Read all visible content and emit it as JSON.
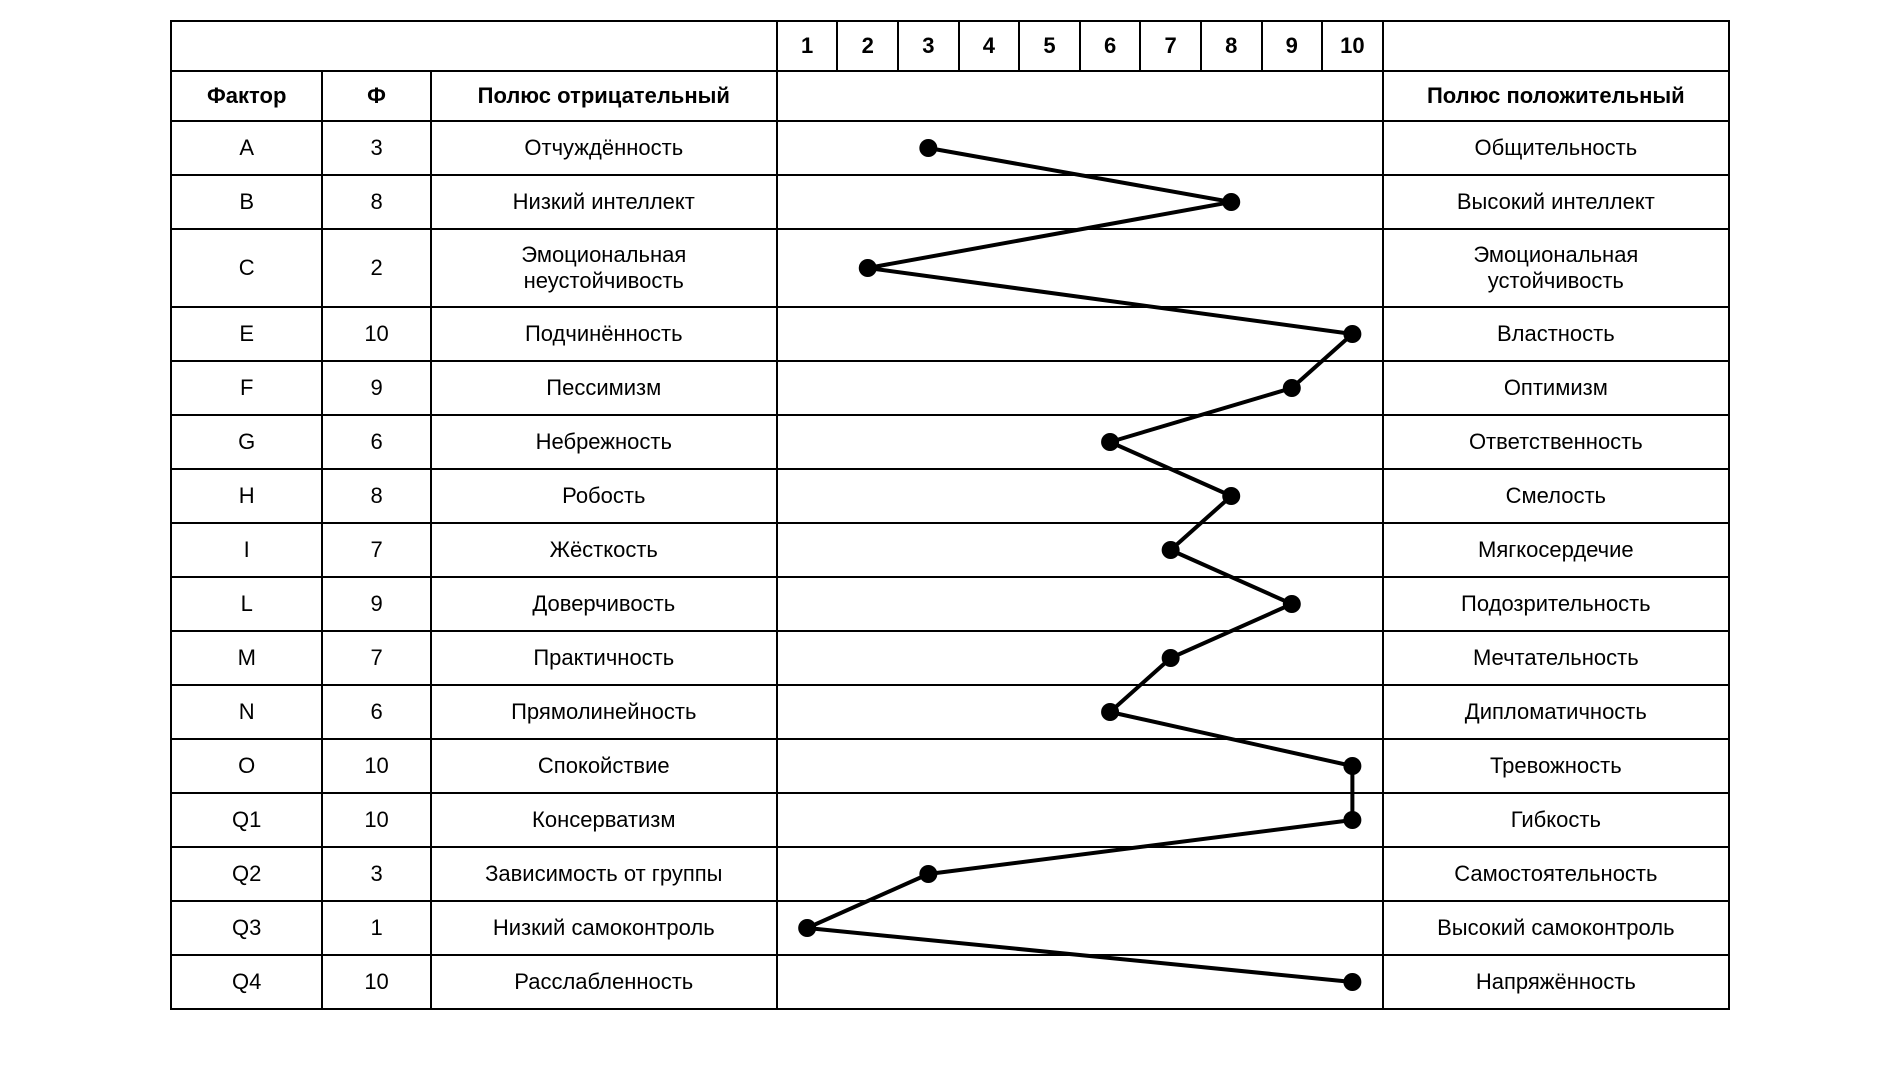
{
  "headers": {
    "factor": "Фактор",
    "phi": "Ф",
    "neg": "Полюс отрицательный",
    "pos": "Полюс положительный",
    "scale": [
      "1",
      "2",
      "3",
      "4",
      "5",
      "6",
      "7",
      "8",
      "9",
      "10"
    ]
  },
  "rows": [
    {
      "factor": "A",
      "value": 3,
      "neg": "Отчуждённость",
      "pos": "Общительность",
      "tall": false
    },
    {
      "factor": "B",
      "value": 8,
      "neg": "Низкий интеллект",
      "pos": "Высокий интеллект",
      "tall": false
    },
    {
      "factor": "C",
      "value": 2,
      "neg": "Эмоциональная\nнеустойчивость",
      "pos": "Эмоциональная\nустойчивость",
      "tall": true
    },
    {
      "factor": "E",
      "value": 10,
      "neg": "Подчинённость",
      "pos": "Властность",
      "tall": false
    },
    {
      "factor": "F",
      "value": 9,
      "neg": "Пессимизм",
      "pos": "Оптимизм",
      "tall": false
    },
    {
      "factor": "G",
      "value": 6,
      "neg": "Небрежность",
      "pos": "Ответственность",
      "tall": false
    },
    {
      "factor": "H",
      "value": 8,
      "neg": "Робость",
      "pos": "Смелость",
      "tall": false
    },
    {
      "factor": "I",
      "value": 7,
      "neg": "Жёсткость",
      "pos": "Мягкосердечие",
      "tall": false
    },
    {
      "factor": "L",
      "value": 9,
      "neg": "Доверчивость",
      "pos": "Подозрительность",
      "tall": false
    },
    {
      "factor": "M",
      "value": 7,
      "neg": "Практичность",
      "pos": "Мечтательность",
      "tall": false
    },
    {
      "factor": "N",
      "value": 6,
      "neg": "Прямолинейность",
      "pos": "Дипломатичность",
      "tall": false
    },
    {
      "factor": "O",
      "value": 10,
      "neg": "Спокойствие",
      "pos": "Тревожность",
      "tall": false
    },
    {
      "factor": "Q1",
      "value": 10,
      "neg": "Консерватизм",
      "pos": "Гибкость",
      "tall": false
    },
    {
      "factor": "Q2",
      "value": 3,
      "neg": "Зависимость от группы",
      "pos": "Самостоятельность",
      "tall": false
    },
    {
      "factor": "Q3",
      "value": 1,
      "neg": "Низкий самоконтроль",
      "pos": "Высокий самоконтроль",
      "tall": false
    },
    {
      "factor": "Q4",
      "value": 10,
      "neg": "Расслабленность",
      "pos": "Напряжённость",
      "tall": false
    }
  ],
  "style": {
    "line_color": "#000000",
    "line_width": 4,
    "point_radius": 9,
    "point_fill": "#000000",
    "background": "#ffffff",
    "border_color": "#000000",
    "font_size_pt": 16,
    "header_font_weight": 700
  }
}
